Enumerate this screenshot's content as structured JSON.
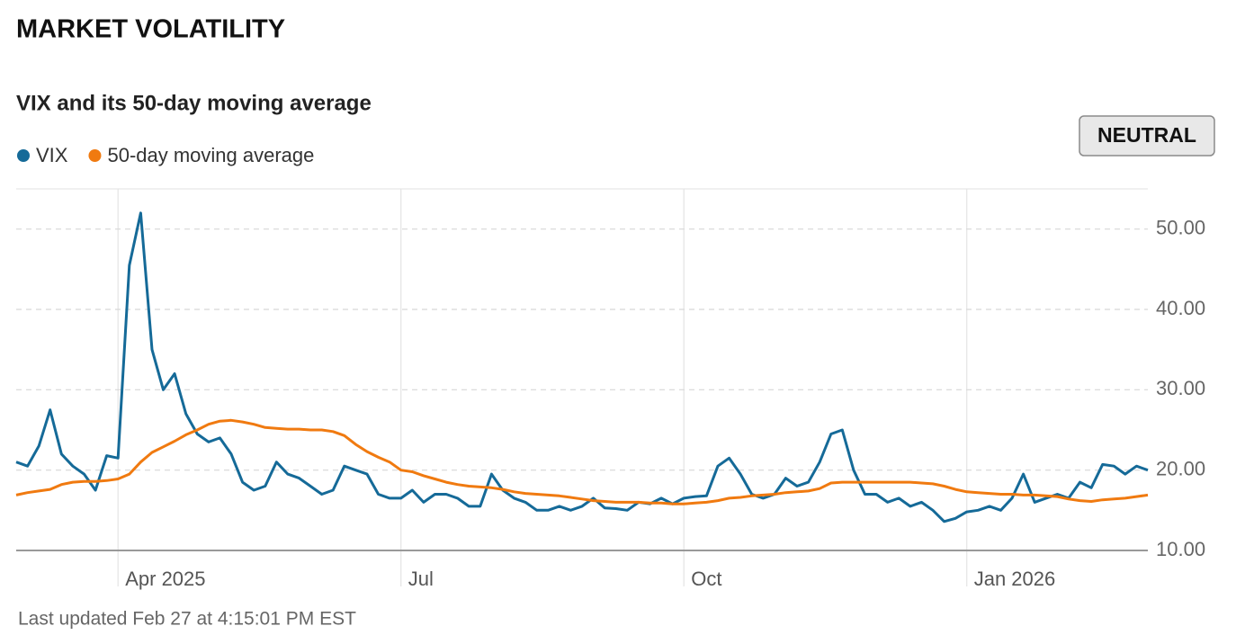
{
  "header": "MARKET VOLATILITY",
  "badge": "NEUTRAL",
  "footer": "Last updated Feb 27 at 4:15:01 PM EST",
  "chart_data": {
    "type": "line",
    "title": "VIX and its 50-day moving average",
    "categories": [
      null,
      null,
      null,
      null,
      null,
      null,
      null,
      null,
      null,
      "Apr 2025",
      null,
      null,
      null,
      null,
      null,
      null,
      null,
      null,
      null,
      null,
      null,
      null,
      null,
      null,
      null,
      null,
      null,
      null,
      null,
      null,
      null,
      null,
      null,
      null,
      "Jul",
      null,
      null,
      null,
      null,
      null,
      null,
      null,
      null,
      null,
      null,
      null,
      null,
      null,
      null,
      null,
      null,
      null,
      null,
      null,
      null,
      null,
      null,
      null,
      null,
      "Oct",
      null,
      null,
      null,
      null,
      null,
      null,
      null,
      null,
      null,
      null,
      null,
      null,
      null,
      null,
      null,
      null,
      null,
      null,
      null,
      null,
      null,
      null,
      null,
      null,
      "Jan 2026",
      null,
      null,
      null,
      null,
      null,
      null,
      null,
      null,
      null,
      null,
      null,
      null,
      null,
      null,
      null,
      null
    ],
    "series": [
      {
        "name": "VIX",
        "color": "#156a98",
        "values": [
          21,
          20.5,
          23,
          27.5,
          22,
          20.5,
          19.5,
          17.5,
          21.8,
          21.5,
          45.5,
          52,
          35,
          30,
          32,
          27,
          24.5,
          23.5,
          24,
          22,
          18.5,
          17.5,
          18,
          21,
          19.5,
          19,
          18,
          17,
          17.5,
          20.5,
          20,
          19.5,
          17,
          16.5,
          16.5,
          17.5,
          16,
          17,
          17,
          16.5,
          15.5,
          15.5,
          19.5,
          17.5,
          16.5,
          16,
          15,
          15,
          15.5,
          15,
          15.5,
          16.5,
          15.3,
          15.2,
          15,
          16,
          15.8,
          16.5,
          15.8,
          16.5,
          16.7,
          16.8,
          20.5,
          21.5,
          19.5,
          17,
          16.5,
          17,
          19,
          18,
          18.5,
          21,
          24.5,
          25,
          20,
          17,
          17,
          16,
          16.5,
          15.5,
          16,
          15,
          13.6,
          14,
          14.8,
          15,
          15.5,
          15,
          16.5,
          19.5,
          16,
          16.5,
          17,
          16.5,
          18.5,
          17.8,
          20.7,
          20.5,
          19.5,
          20.5,
          20
        ]
      },
      {
        "name": "50-day moving average",
        "color": "#f07a10",
        "values": [
          16.9,
          17.2,
          17.4,
          17.6,
          18.2,
          18.5,
          18.6,
          18.6,
          18.7,
          18.9,
          19.5,
          21,
          22.2,
          22.9,
          23.6,
          24.4,
          25,
          25.7,
          26.1,
          26.2,
          26,
          25.7,
          25.3,
          25.2,
          25.1,
          25.1,
          25,
          25,
          24.8,
          24.3,
          23.2,
          22.3,
          21.6,
          21,
          20,
          19.8,
          19.3,
          18.9,
          18.5,
          18.2,
          18,
          17.9,
          17.8,
          17.6,
          17.3,
          17.1,
          17,
          16.9,
          16.8,
          16.6,
          16.4,
          16.2,
          16.1,
          16,
          16,
          16,
          15.9,
          15.9,
          15.8,
          15.8,
          15.9,
          16,
          16.2,
          16.5,
          16.6,
          16.8,
          16.9,
          17,
          17.2,
          17.3,
          17.4,
          17.7,
          18.4,
          18.5,
          18.5,
          18.5,
          18.5,
          18.5,
          18.5,
          18.5,
          18.4,
          18.3,
          18,
          17.6,
          17.3,
          17.2,
          17.1,
          17,
          17,
          16.9,
          16.9,
          16.8,
          16.7,
          16.4,
          16.2,
          16.1,
          16.3,
          16.4,
          16.5,
          16.7,
          16.9
        ]
      }
    ],
    "ylim": [
      10,
      55
    ],
    "yticks": [
      {
        "value": 10,
        "label": "10.00"
      },
      {
        "value": 20,
        "label": "20.00"
      },
      {
        "value": 30,
        "label": "30.00"
      },
      {
        "value": 40,
        "label": "40.00"
      },
      {
        "value": 50,
        "label": "50.00"
      }
    ],
    "grid": true,
    "legend": "top-left"
  }
}
